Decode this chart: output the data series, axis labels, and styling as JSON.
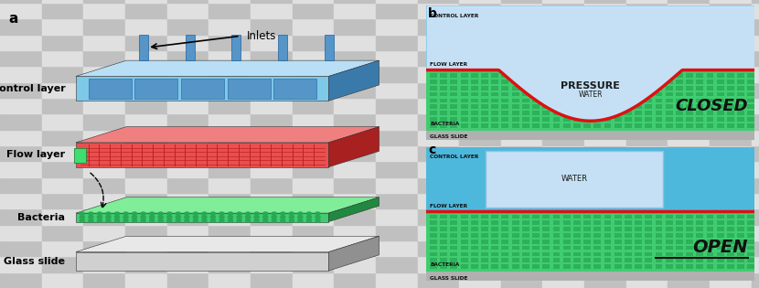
{
  "panel_a_label": "a",
  "panel_b_label": "b",
  "panel_c_label": "c",
  "labels_left": [
    "Control layer",
    "Flow layer",
    "Bacteria",
    "Glass slide"
  ],
  "pressure_text": "PRESSURE",
  "water_text_b": "WATER",
  "water_text_c": "WATER",
  "closed_text": "CLOSED",
  "open_text": "OPEN",
  "inlets_text": "Inlets",
  "ctrl_face": "#7ec8e8",
  "ctrl_top": "#b8dff5",
  "ctrl_side": "#3a7aaa",
  "ctrl_channel": "#5595c8",
  "flow_face": "#e85050",
  "flow_top": "#f08080",
  "flow_side": "#a82020",
  "bacteria_face": "#40cc70",
  "bacteria_top": "#80ee99",
  "bacteria_side": "#208840",
  "glass_face": "#d0d0d0",
  "glass_top": "#e8e8e8",
  "glass_side": "#909090",
  "blue_bg": "#4db8dc",
  "light_blue": "#c5e0f5",
  "green_bg": "#40cc70",
  "green_dot": "#28a855",
  "gray_slide": "#b0b0b0",
  "red_membrane": "#dd1111",
  "checker_dark": "#c0c0c0",
  "checker_light": "#e0e0e0",
  "checker_sq": 0.055
}
